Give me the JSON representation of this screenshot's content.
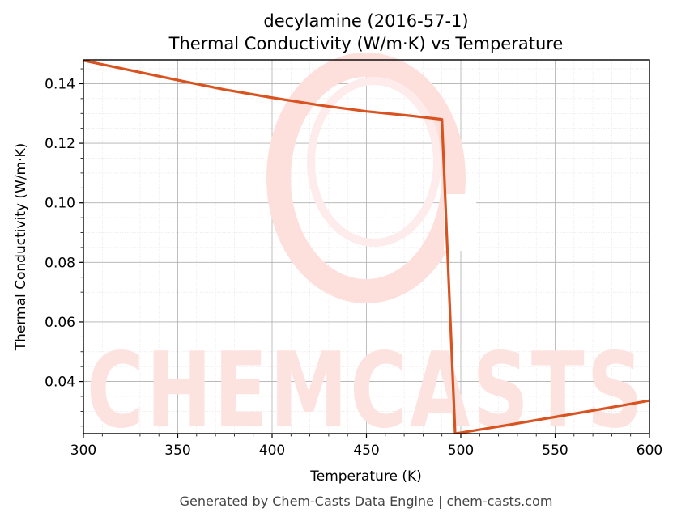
{
  "chart_data": {
    "type": "line",
    "title": "decylamine (2016-57-1)",
    "subtitle": "Thermal Conductivity (W/m·K) vs Temperature",
    "xlabel": "Temperature (K)",
    "ylabel": "Thermal Conductivity (W/m·K)",
    "xlim": [
      300,
      600
    ],
    "ylim": [
      0.0225,
      0.148
    ],
    "x_ticks": [
      300,
      350,
      400,
      450,
      500,
      550,
      600
    ],
    "y_ticks": [
      0.04,
      0.06,
      0.08,
      0.1,
      0.12,
      0.14
    ],
    "x_tick_labels": [
      "300",
      "350",
      "400",
      "450",
      "500",
      "550",
      "600"
    ],
    "y_tick_labels": [
      "0.04",
      "0.06",
      "0.08",
      "0.10",
      "0.12",
      "0.14"
    ],
    "grid": true,
    "line_color": "#d95320",
    "series": [
      {
        "x": [
          300,
          325,
          350,
          375,
          400,
          425,
          450,
          475,
          490,
          497,
          500,
          525,
          550,
          575,
          600
        ],
        "y": [
          0.1478,
          0.1445,
          0.1412,
          0.138,
          0.1353,
          0.1328,
          0.1307,
          0.1291,
          0.128,
          0.0225,
          0.0228,
          0.0254,
          0.0281,
          0.0308,
          0.0336
        ]
      }
    ]
  },
  "watermark": {
    "text": "CHEMCASTS",
    "color": "#fde3e0"
  },
  "footer": "Generated by Chem-Casts Data Engine | chem-casts.com"
}
